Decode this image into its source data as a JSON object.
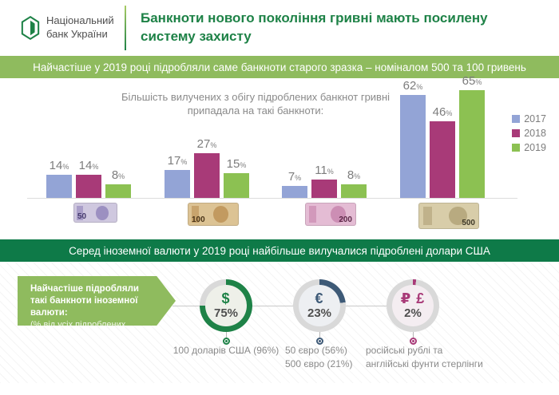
{
  "header": {
    "logo": {
      "line1": "Національний",
      "line2": "банк України"
    },
    "title": "Банкноти нового покоління гривні мають посилену систему захисту"
  },
  "banners": {
    "top": "Найчастіше у 2019 році підробляли саме банкноти старого зразка – номіналом 500 та 100 гривень",
    "middle": "Серед іноземної валюти у 2019 році найбільше вилучалися підроблені долари США"
  },
  "colors": {
    "brand_green": "#1e8247",
    "banner_light_green": "#8fbb5e",
    "banner_dark_green": "#0e7a48",
    "donut_rest_gray": "#d9d9d9",
    "text_gray": "#8a8a8a"
  },
  "chart_data": [
    {
      "type": "bar",
      "title": "Більшість вилучених з обігу підроблених банкнот гривні припадала на такі банкноти:",
      "unit": "%",
      "categories": [
        "50",
        "100",
        "200",
        "500"
      ],
      "series": [
        {
          "name": "2017",
          "color": "#93a4d6",
          "values": [
            14,
            17,
            7,
            62
          ]
        },
        {
          "name": "2018",
          "color": "#a83a78",
          "values": [
            14,
            27,
            11,
            46
          ]
        },
        {
          "name": "2019",
          "color": "#8cc152",
          "values": [
            8,
            15,
            8,
            65
          ]
        }
      ],
      "ylim": [
        0,
        70
      ],
      "legend_position": "right",
      "grid": false,
      "banknotes": [
        {
          "denom": "50",
          "base": "#cfc8df",
          "accent": "#7a6aae",
          "text": "#453a6e"
        },
        {
          "denom": "100",
          "base": "#dcc394",
          "accent": "#b07e3e",
          "text": "#4a3417"
        },
        {
          "denom": "200",
          "base": "#e4bcd4",
          "accent": "#bd6f9e",
          "text": "#5c2848"
        },
        {
          "denom": "500",
          "base": "#d8cda9",
          "accent": "#a39266",
          "text": "#3e3827"
        }
      ]
    },
    {
      "type": "donut",
      "title": "Найчастіше підробляли такі банкноти іноземної валюти:",
      "subtitle": "(% від усіх підроблених банкнот)",
      "donuts": [
        {
          "symbol": "$",
          "value": 75,
          "label": "75%",
          "color": "#1e8247",
          "caption": [
            "100 доларів США (96%)"
          ]
        },
        {
          "symbol": "€",
          "value": 23,
          "label": "23%",
          "color": "#3e5a77",
          "caption": [
            "50 євро (56%)",
            "500 євро (21%)"
          ]
        },
        {
          "symbol": "₽ £",
          "value": 2,
          "label": "2%",
          "color": "#a83a78",
          "caption": [
            "російські рублі та",
            "англійські фунти стерлінги"
          ]
        }
      ]
    }
  ]
}
